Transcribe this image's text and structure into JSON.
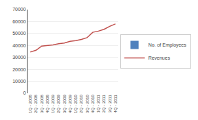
{
  "chart_data": {
    "type": "line",
    "categories": [
      "1Q - 2008",
      "2Q - 2008",
      "3Q - 2008",
      "4Q - 2008",
      "1Q - 2009",
      "2Q - 2009",
      "3Q - 2009",
      "4Q - 2009",
      "1Q - 2010",
      "2Q - 2010",
      "3Q - 2010",
      "4Q - 2010",
      "1Q - 2011",
      "2Q - 2011",
      "3Q - 2011",
      "4Q - 2011"
    ],
    "series": [
      {
        "name": "No. of Employees",
        "type": "bar",
        "color": "#4f81bd",
        "values": [
          null,
          null,
          null,
          null,
          null,
          null,
          null,
          null,
          null,
          null,
          null,
          null,
          null,
          null,
          null,
          null
        ]
      },
      {
        "name": "Revenues",
        "type": "line",
        "color": "#c0504d",
        "values": [
          34500,
          36000,
          39500,
          40000,
          40500,
          41500,
          42000,
          43500,
          44000,
          45000,
          46500,
          51000,
          52000,
          53500,
          56000,
          58000
        ]
      }
    ],
    "ylim": [
      0,
      70000
    ],
    "yticks": [
      0,
      10000,
      20000,
      30000,
      40000,
      50000,
      60000,
      70000
    ],
    "grid": true,
    "legend": "right"
  }
}
